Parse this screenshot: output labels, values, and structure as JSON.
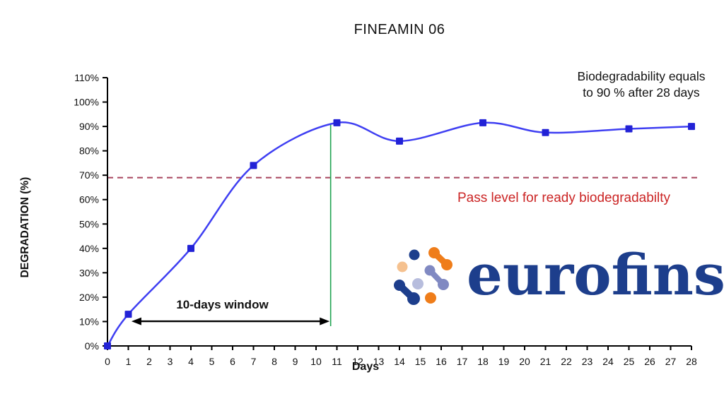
{
  "chart_data": {
    "type": "line",
    "title": "FINEAMIN 06",
    "xlabel": "Days",
    "ylabel": "DEGRADATION (%)",
    "x": [
      0,
      1,
      4,
      7,
      11,
      14,
      18,
      21,
      25,
      28
    ],
    "y": [
      0,
      13,
      40,
      74,
      91.5,
      84,
      91.5,
      87.5,
      89,
      90
    ],
    "xlim": [
      0,
      28
    ],
    "ylim": [
      0,
      110
    ],
    "x_ticks": [
      0,
      1,
      2,
      3,
      4,
      5,
      6,
      7,
      8,
      9,
      10,
      11,
      12,
      13,
      14,
      15,
      16,
      17,
      18,
      19,
      20,
      21,
      22,
      23,
      24,
      25,
      26,
      27,
      28
    ],
    "y_tick_labels": [
      "0%",
      "10%",
      "20%",
      "30%",
      "40%",
      "50%",
      "60%",
      "70%",
      "80%",
      "90%",
      "100%",
      "110%"
    ],
    "y_tick_step": 10,
    "grid": false,
    "series_color": "#3f3ff2",
    "marker_color": "#2222d6",
    "pass_level": {
      "value": 69,
      "label": "Pass level for ready biodegradabilty",
      "line_color": "#a8435c",
      "label_color": "#cb2525"
    },
    "window": {
      "label": "10-days window",
      "from_day": 1.15,
      "to_day": 10.65,
      "y_percent": 10.1
    },
    "green_line": {
      "day": 10.7,
      "top_percent": 90.8,
      "color": "#1fa351"
    },
    "note": {
      "line1": "Biodegradability equals",
      "line2": "to 90 % after 28 days"
    }
  },
  "logo": {
    "text": "eurofins",
    "navy": "#1d3e8c",
    "orange": "#ef7d1a",
    "light_orange": "#f5c18f",
    "periwinkle": "#8089c2",
    "lavender": "#b7bddd"
  }
}
